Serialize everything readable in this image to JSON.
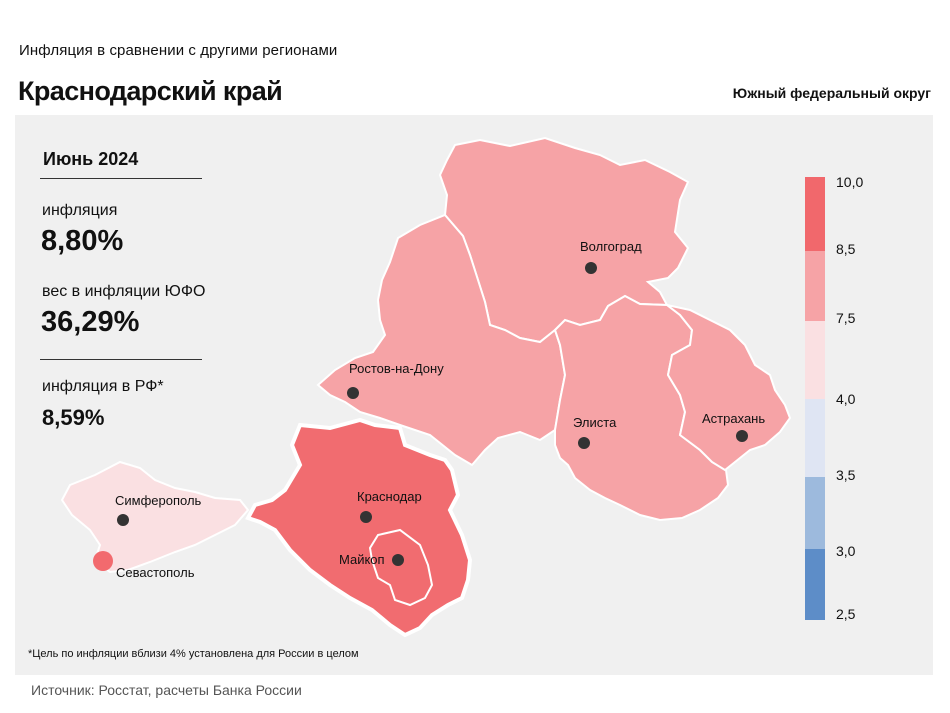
{
  "header": {
    "subtitle": "Инфляция  в сравнении  с другими  регионами",
    "title": "Краснодарский край",
    "district": "Южный федеральный округ"
  },
  "stats": {
    "period": "Июнь 2024",
    "inflation_label": "инфляция",
    "inflation_value": "8,80%",
    "weight_label": "вес в инфляции  ЮФО",
    "weight_value": "36,29%",
    "rf_label": "инфляция  в РФ*",
    "rf_value": "8,59%"
  },
  "cities": {
    "volgograd": "Волгоград",
    "rostov": "Ростов-на-Дону",
    "elista": "Элиста",
    "astrakhan": "Астрахань",
    "krasnodar": "Краснодар",
    "maykop": "Майкоп",
    "simferopol": "Симферополь",
    "sevastopol": "Севастополь"
  },
  "legend": {
    "ticks": [
      "10,0",
      "8,5",
      "7,5",
      "4,0",
      "3,5",
      "3,0",
      "2,5"
    ],
    "colors": [
      "#f1686c",
      "#f6a3a6",
      "#fae0e2",
      "#dfe5f3",
      "#9dbadd",
      "#5d8dc8"
    ]
  },
  "colors": {
    "highlight_region": "#f16c70",
    "mid_regions": "#f6a3a6",
    "light_regions": "#fae0e2",
    "sevastopol": "#f26a6e"
  },
  "footnote": "*Цель по инфляции вблизи 4% установлена для России в целом",
  "source": "Источник: Росстат, расчеты Банка России"
}
